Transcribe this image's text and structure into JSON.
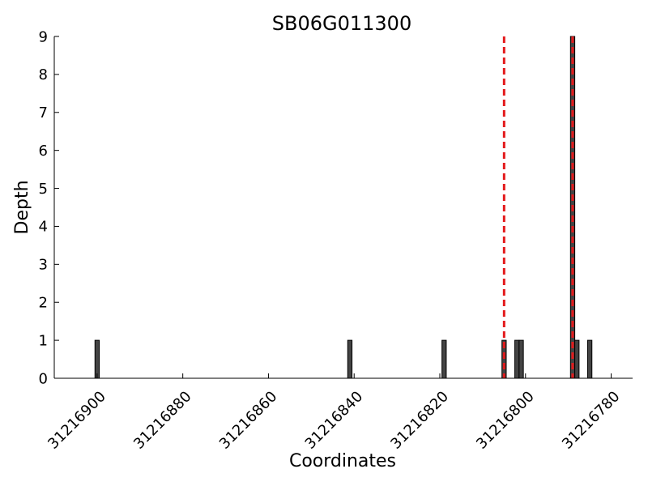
{
  "chart_data": {
    "type": "bar",
    "title": "SB06G011300",
    "xlabel": "Coordinates",
    "ylabel": "Depth",
    "x_reversed": true,
    "xlim": [
      31216910,
      31216775
    ],
    "ylim": [
      0,
      9
    ],
    "x_ticks": [
      31216900,
      31216880,
      31216860,
      31216840,
      31216820,
      31216800,
      31216780
    ],
    "x_tick_labels": [
      "31216900",
      "31216880",
      "31216860",
      "31216840",
      "31216820",
      "31216800",
      "31216780"
    ],
    "y_ticks": [
      0,
      1,
      2,
      3,
      4,
      5,
      6,
      7,
      8,
      9
    ],
    "y_tick_labels": [
      "0",
      "1",
      "2",
      "3",
      "4",
      "5",
      "6",
      "7",
      "8",
      "9"
    ],
    "bar_color": "#444444",
    "bar_edge_color": "#000000",
    "positions": [
      31216900,
      31216841,
      31216819,
      31216805,
      31216802,
      31216801,
      31216789,
      31216788,
      31216785
    ],
    "values": [
      1,
      1,
      1,
      1,
      1,
      1,
      9,
      1,
      1
    ],
    "reference_lines": [
      {
        "x": 31216805,
        "color": "#e31a1c",
        "style": "dashed"
      },
      {
        "x": 31216789,
        "color": "#e31a1c",
        "style": "dashed"
      }
    ],
    "grid": false
  }
}
